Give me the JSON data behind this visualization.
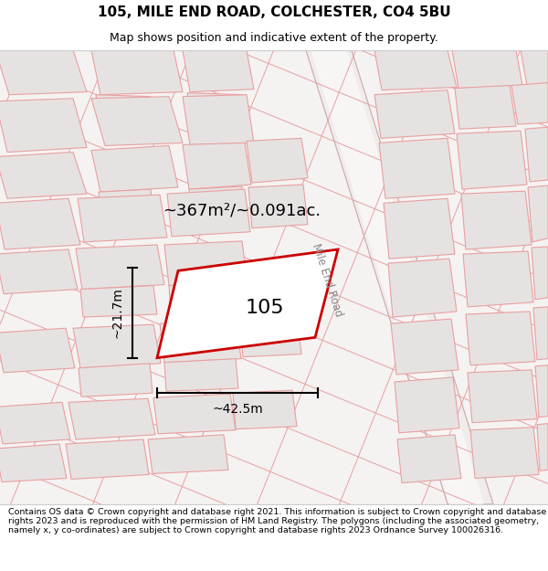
{
  "title_line1": "105, MILE END ROAD, COLCHESTER, CO4 5BU",
  "title_line2": "Map shows position and indicative extent of the property.",
  "footer_text": "Contains OS data © Crown copyright and database right 2021. This information is subject to Crown copyright and database rights 2023 and is reproduced with the permission of HM Land Registry. The polygons (including the associated geometry, namely x, y co-ordinates) are subject to Crown copyright and database rights 2023 Ordnance Survey 100026316.",
  "area_label": "~367m²/~0.091ac.",
  "plot_number": "105",
  "dim_width": "~42.5m",
  "dim_height": "~21.7m",
  "road_label": "Mile End Road",
  "bg_color": "#f5f0f0",
  "map_bg": "#f5f2f2",
  "building_fill": "#e6e2e2",
  "building_stroke": "#e8a0a0",
  "road_color": "#f0ecec",
  "road_edge": "#d4b0b0",
  "plot_stroke": "#cc0000",
  "plot_fill": "#ffffff",
  "title_fontsize": 11,
  "subtitle_fontsize": 9,
  "footer_fontsize": 6.8,
  "plot_label_fontsize": 16,
  "area_fontsize": 13,
  "dim_fontsize": 10,
  "road_label_fontsize": 8.5
}
